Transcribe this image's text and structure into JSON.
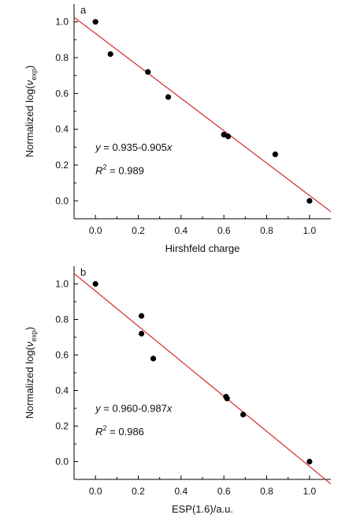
{
  "chart_data": [
    {
      "type": "scatter",
      "panel_label": "a",
      "xlabel": "Hirshfeld charge",
      "ylabel": "Normalized log(ν_exp)",
      "ylabel_parts": {
        "prefix": "Normalized log(",
        "symbol": "ν",
        "subscript": "exp",
        "suffix": ")"
      },
      "xlim": [
        -0.1,
        1.1
      ],
      "ylim": [
        -0.1,
        1.1
      ],
      "xticks": [
        "0.0",
        "0.2",
        "0.4",
        "0.6",
        "0.8",
        "1.0"
      ],
      "yticks": [
        "0.0",
        "0.2",
        "0.4",
        "0.6",
        "0.8",
        "1.0"
      ],
      "x": [
        0.0,
        0.07,
        0.245,
        0.34,
        0.6,
        0.62,
        0.84,
        1.0
      ],
      "y": [
        1.0,
        0.82,
        0.72,
        0.58,
        0.37,
        0.36,
        0.26,
        0.0
      ],
      "fit": {
        "intercept": 0.935,
        "slope": -0.905,
        "color": "#d62728"
      },
      "equation": {
        "lhs": "y",
        "rhs": " = 0.935-0.905",
        "var": "x"
      },
      "r2": {
        "symbol": "R",
        "sup": "2",
        "value": " = 0.989"
      }
    },
    {
      "type": "scatter",
      "panel_label": "b",
      "xlabel": "ESP(1.6)/a.u.",
      "ylabel": "Normalized log(ν_exp)",
      "ylabel_parts": {
        "prefix": "Normalized log(",
        "symbol": "ν",
        "subscript": "exp",
        "suffix": ")"
      },
      "xlim": [
        -0.1,
        1.1
      ],
      "ylim": [
        -0.1,
        1.1
      ],
      "xticks": [
        "0.0",
        "0.2",
        "0.4",
        "0.6",
        "0.8",
        "1.0"
      ],
      "yticks": [
        "0.0",
        "0.2",
        "0.4",
        "0.6",
        "0.8",
        "1.0"
      ],
      "x": [
        0.0,
        0.215,
        0.215,
        0.27,
        0.61,
        0.615,
        0.69,
        1.0
      ],
      "y": [
        1.0,
        0.82,
        0.72,
        0.58,
        0.365,
        0.355,
        0.265,
        0.0
      ],
      "fit": {
        "intercept": 0.96,
        "slope": -0.987,
        "color": "#d62728"
      },
      "equation": {
        "lhs": "y",
        "rhs": " = 0.960-0.987",
        "var": "x"
      },
      "r2": {
        "symbol": "R",
        "sup": "2",
        "value": " = 0.986"
      }
    }
  ]
}
